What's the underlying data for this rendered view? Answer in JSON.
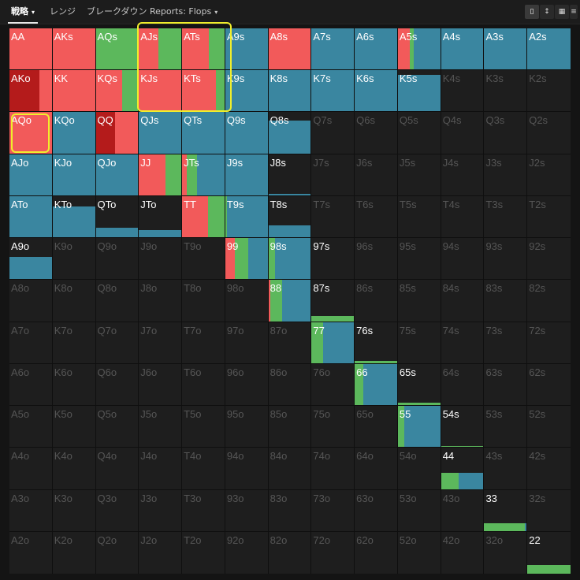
{
  "toolbar": {
    "tabs": [
      {
        "label": "戦略",
        "caret": "▾"
      },
      {
        "label": "レンジ",
        "caret": ""
      },
      {
        "label": "ブレークダウン",
        "caret": ""
      },
      {
        "label": "Reports: Flops",
        "caret": "▾"
      }
    ],
    "view_icons": [
      "single-view-icon",
      "expand-view-icon",
      "grid-view-icon",
      "list-view-icon"
    ]
  },
  "colors": {
    "raise": "#f25a5a",
    "raise_dark": "#b41b1b",
    "call": "#5cb85c",
    "fold": "#3a86a0",
    "empty": "#1e1e1e",
    "highlight": "#f0ee2c"
  },
  "matrix": {
    "rows": [
      [
        "AA",
        "AKs",
        "AQs",
        "AJs",
        "ATs",
        "A9s",
        "A8s",
        "A7s",
        "A6s",
        "A5s",
        "A4s",
        "A3s",
        "A2s"
      ],
      [
        "AKo",
        "KK",
        "KQs",
        "KJs",
        "KTs",
        "K9s",
        "K8s",
        "K7s",
        "K6s",
        "K5s",
        "K4s",
        "K3s",
        "K2s"
      ],
      [
        "AQo",
        "KQo",
        "QQ",
        "QJs",
        "QTs",
        "Q9s",
        "Q8s",
        "Q7s",
        "Q6s",
        "Q5s",
        "Q4s",
        "Q3s",
        "Q2s"
      ],
      [
        "AJo",
        "KJo",
        "QJo",
        "JJ",
        "JTs",
        "J9s",
        "J8s",
        "J7s",
        "J6s",
        "J5s",
        "J4s",
        "J3s",
        "J2s"
      ],
      [
        "ATo",
        "KTo",
        "QTo",
        "JTo",
        "TT",
        "T9s",
        "T8s",
        "T7s",
        "T6s",
        "T5s",
        "T4s",
        "T3s",
        "T2s"
      ],
      [
        "A9o",
        "K9o",
        "Q9o",
        "J9o",
        "T9o",
        "99",
        "98s",
        "97s",
        "96s",
        "95s",
        "94s",
        "93s",
        "92s"
      ],
      [
        "A8o",
        "K8o",
        "Q8o",
        "J8o",
        "T8o",
        "98o",
        "88",
        "87s",
        "86s",
        "85s",
        "84s",
        "83s",
        "82s"
      ],
      [
        "A7o",
        "K7o",
        "Q7o",
        "J7o",
        "T7o",
        "97o",
        "87o",
        "77",
        "76s",
        "75s",
        "74s",
        "73s",
        "72s"
      ],
      [
        "A6o",
        "K6o",
        "Q6o",
        "J6o",
        "T6o",
        "96o",
        "86o",
        "76o",
        "66",
        "65s",
        "64s",
        "63s",
        "62s"
      ],
      [
        "A5o",
        "K5o",
        "Q5o",
        "J5o",
        "T5o",
        "95o",
        "85o",
        "75o",
        "65o",
        "55",
        "54s",
        "53s",
        "52s"
      ],
      [
        "A4o",
        "K4o",
        "Q4o",
        "J4o",
        "T4o",
        "94o",
        "84o",
        "74o",
        "64o",
        "54o",
        "44",
        "43s",
        "42s"
      ],
      [
        "A3o",
        "K3o",
        "Q3o",
        "J3o",
        "T3o",
        "93o",
        "83o",
        "73o",
        "63o",
        "53o",
        "43o",
        "33",
        "32s"
      ],
      [
        "A2o",
        "K2o",
        "Q2o",
        "J2o",
        "T2o",
        "92o",
        "82o",
        "72o",
        "62o",
        "52o",
        "42o",
        "32o",
        "22"
      ]
    ],
    "strategies": {
      "AA": {
        "freq": 1.0,
        "mix": [
          [
            "raise",
            1.0
          ]
        ]
      },
      "AKs": {
        "freq": 1.0,
        "mix": [
          [
            "raise",
            1.0
          ]
        ]
      },
      "AQs": {
        "freq": 1.0,
        "mix": [
          [
            "call",
            1.0
          ]
        ]
      },
      "AJs": {
        "freq": 1.0,
        "mix": [
          [
            "raise",
            0.45
          ],
          [
            "call",
            0.55
          ]
        ]
      },
      "ATs": {
        "freq": 1.0,
        "mix": [
          [
            "raise",
            0.62
          ],
          [
            "call",
            0.38
          ]
        ]
      },
      "A9s": {
        "freq": 1.0,
        "mix": [
          [
            "fold",
            1.0
          ]
        ]
      },
      "A8s": {
        "freq": 1.0,
        "mix": [
          [
            "raise",
            1.0
          ]
        ]
      },
      "A7s": {
        "freq": 1.0,
        "mix": [
          [
            "fold",
            1.0
          ]
        ]
      },
      "A6s": {
        "freq": 1.0,
        "mix": [
          [
            "fold",
            1.0
          ]
        ]
      },
      "A5s": {
        "freq": 1.0,
        "mix": [
          [
            "raise",
            0.28
          ],
          [
            "call",
            0.08
          ],
          [
            "fold",
            0.64
          ]
        ]
      },
      "A4s": {
        "freq": 1.0,
        "mix": [
          [
            "fold",
            1.0
          ]
        ]
      },
      "A3s": {
        "freq": 1.0,
        "mix": [
          [
            "fold",
            1.0
          ]
        ]
      },
      "A2s": {
        "freq": 1.0,
        "mix": [
          [
            "fold",
            1.0
          ]
        ]
      },
      "AKo": {
        "freq": 1.0,
        "mix": [
          [
            "raise_dark",
            0.7
          ],
          [
            "raise",
            0.3
          ]
        ]
      },
      "KK": {
        "freq": 1.0,
        "mix": [
          [
            "raise",
            1.0
          ]
        ]
      },
      "KQs": {
        "freq": 1.0,
        "mix": [
          [
            "raise",
            0.62
          ],
          [
            "call",
            0.38
          ]
        ]
      },
      "KJs": {
        "freq": 1.0,
        "mix": [
          [
            "raise",
            1.0
          ]
        ]
      },
      "KTs": {
        "freq": 1.0,
        "mix": [
          [
            "raise",
            0.78
          ],
          [
            "call",
            0.22
          ]
        ]
      },
      "K9s": {
        "freq": 1.0,
        "mix": [
          [
            "fold",
            1.0
          ]
        ]
      },
      "K8s": {
        "freq": 1.0,
        "mix": [
          [
            "fold",
            1.0
          ]
        ]
      },
      "K7s": {
        "freq": 1.0,
        "mix": [
          [
            "fold",
            1.0
          ]
        ]
      },
      "K6s": {
        "freq": 1.0,
        "mix": [
          [
            "fold",
            1.0
          ]
        ]
      },
      "K5s": {
        "freq": 0.9,
        "mix": [
          [
            "fold",
            1.0
          ]
        ]
      },
      "AQo": {
        "freq": 1.0,
        "mix": [
          [
            "raise",
            1.0
          ]
        ]
      },
      "KQo": {
        "freq": 1.0,
        "mix": [
          [
            "fold",
            1.0
          ]
        ]
      },
      "QQ": {
        "freq": 1.0,
        "mix": [
          [
            "raise_dark",
            0.45
          ],
          [
            "raise",
            0.55
          ]
        ]
      },
      "QJs": {
        "freq": 1.0,
        "mix": [
          [
            "fold",
            1.0
          ]
        ]
      },
      "QTs": {
        "freq": 1.0,
        "mix": [
          [
            "fold",
            1.0
          ]
        ]
      },
      "Q9s": {
        "freq": 1.0,
        "mix": [
          [
            "fold",
            1.0
          ]
        ]
      },
      "Q8s": {
        "freq": 0.8,
        "mix": [
          [
            "fold",
            1.0
          ]
        ]
      },
      "AJo": {
        "freq": 1.0,
        "mix": [
          [
            "fold",
            1.0
          ]
        ]
      },
      "KJo": {
        "freq": 1.0,
        "mix": [
          [
            "fold",
            1.0
          ]
        ]
      },
      "QJo": {
        "freq": 1.0,
        "mix": [
          [
            "fold",
            1.0
          ]
        ]
      },
      "JJ": {
        "freq": 1.0,
        "mix": [
          [
            "raise",
            0.62
          ],
          [
            "call",
            0.38
          ]
        ]
      },
      "JTs": {
        "freq": 1.0,
        "mix": [
          [
            "raise",
            0.1
          ],
          [
            "call",
            0.25
          ],
          [
            "fold",
            0.65
          ]
        ]
      },
      "J9s": {
        "freq": 1.0,
        "mix": [
          [
            "fold",
            1.0
          ]
        ]
      },
      "J8s": {
        "freq": 0.06,
        "mix": [
          [
            "fold",
            1.0
          ]
        ]
      },
      "ATo": {
        "freq": 1.0,
        "mix": [
          [
            "fold",
            1.0
          ]
        ]
      },
      "KTo": {
        "freq": 0.75,
        "mix": [
          [
            "fold",
            1.0
          ]
        ]
      },
      "QTo": {
        "freq": 0.25,
        "mix": [
          [
            "fold",
            1.0
          ]
        ]
      },
      "JTo": {
        "freq": 0.2,
        "mix": [
          [
            "fold",
            1.0
          ]
        ]
      },
      "TT": {
        "freq": 1.0,
        "mix": [
          [
            "raise",
            0.6
          ],
          [
            "call",
            0.4
          ]
        ]
      },
      "T9s": {
        "freq": 1.0,
        "mix": [
          [
            "call",
            0.04
          ],
          [
            "fold",
            0.96
          ]
        ]
      },
      "T8s": {
        "freq": 0.3,
        "mix": [
          [
            "fold",
            1.0
          ]
        ]
      },
      "A9o": {
        "freq": 0.55,
        "mix": [
          [
            "fold",
            1.0
          ]
        ]
      },
      "99": {
        "freq": 1.0,
        "mix": [
          [
            "raise",
            0.22
          ],
          [
            "call",
            0.32
          ],
          [
            "fold",
            0.46
          ]
        ]
      },
      "98s": {
        "freq": 1.0,
        "mix": [
          [
            "call",
            0.15
          ],
          [
            "fold",
            0.85
          ]
        ]
      },
      "97s": {
        "freq": 0.0,
        "mix": []
      },
      "88": {
        "freq": 1.0,
        "mix": [
          [
            "raise",
            0.05
          ],
          [
            "call",
            0.26
          ],
          [
            "fold",
            0.69
          ]
        ]
      },
      "87s": {
        "freq": 0.15,
        "mix": [
          [
            "call",
            1.0
          ]
        ]
      },
      "77": {
        "freq": 1.0,
        "mix": [
          [
            "call",
            0.27
          ],
          [
            "fold",
            0.73
          ]
        ]
      },
      "76s": {
        "freq": 0.08,
        "mix": [
          [
            "call",
            1.0
          ]
        ]
      },
      "66": {
        "freq": 1.0,
        "mix": [
          [
            "call",
            0.2
          ],
          [
            "fold",
            0.8
          ]
        ]
      },
      "65s": {
        "freq": 0.07,
        "mix": [
          [
            "call",
            1.0
          ]
        ]
      },
      "55": {
        "freq": 1.0,
        "mix": [
          [
            "call",
            0.15
          ],
          [
            "fold",
            0.85
          ]
        ]
      },
      "54s": {
        "freq": 0.05,
        "mix": [
          [
            "call",
            1.0
          ]
        ]
      },
      "44": {
        "freq": 0.4,
        "mix": [
          [
            "call",
            0.4
          ],
          [
            "fold",
            0.6
          ]
        ]
      },
      "33": {
        "freq": 0.2,
        "mix": [
          [
            "call",
            0.95
          ],
          [
            "fold",
            0.05
          ]
        ]
      },
      "22": {
        "freq": 0.2,
        "mix": [
          [
            "call",
            1.0
          ]
        ]
      }
    }
  }
}
